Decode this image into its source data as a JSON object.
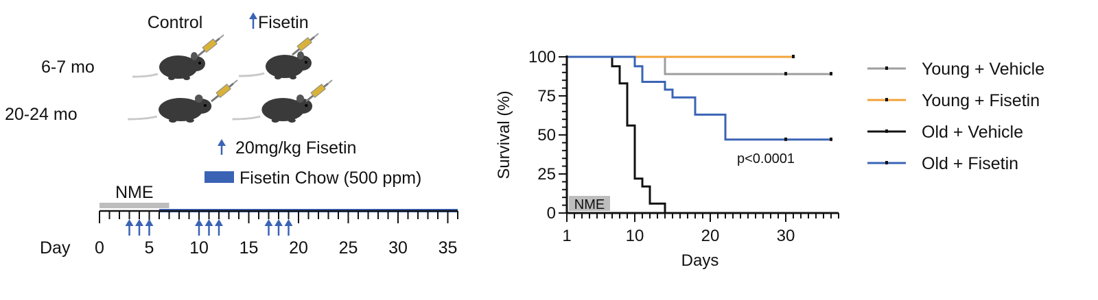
{
  "schematic": {
    "col_control": "Control",
    "col_fisetin": "Fisetin",
    "row_young": "6-7 mo",
    "row_old": "20-24 mo",
    "legend_injection": "20mg/kg Fisetin",
    "legend_chow": "Fisetin Chow (500 ppm)",
    "timeline_label": "Day",
    "nme_label": "NME",
    "timeline_ticks": [
      "0",
      "5",
      "10",
      "15",
      "20",
      "25",
      "30",
      "35"
    ],
    "injection_days": [
      3,
      4,
      5,
      10,
      11,
      12,
      17,
      18,
      19
    ],
    "chow_days": [
      [
        6,
        36
      ]
    ],
    "nme_days": [
      0,
      7
    ],
    "timeline_max": 36,
    "colors": {
      "fisetin": "#3a63b5",
      "nme": "#bdbdbd",
      "syringe": "#d9b23a"
    },
    "icons": [
      "mouse-icon",
      "syringe-icon",
      "arrow-up-icon"
    ]
  },
  "chart_data": {
    "type": "line",
    "title": "",
    "xlabel": "Days",
    "ylabel": "Survival (%)",
    "xlim": [
      1,
      37
    ],
    "ylim": [
      0,
      100
    ],
    "x_ticks": [
      "1",
      "10",
      "20",
      "30"
    ],
    "y_ticks": [
      "0",
      "25",
      "50",
      "75",
      "100"
    ],
    "annotation": "p<0.0001",
    "nme_label": "NME",
    "nme_range": [
      1,
      7
    ],
    "legend_position": "right",
    "series": [
      {
        "name": "Young + Vehicle",
        "color": "#9e9e9e",
        "steps": [
          [
            1,
            100
          ],
          [
            14,
            100
          ],
          [
            14,
            89
          ],
          [
            36,
            89
          ]
        ],
        "censored": [
          [
            30,
            89
          ],
          [
            36,
            89
          ]
        ]
      },
      {
        "name": "Young + Fisetin",
        "color": "#f2a33a",
        "steps": [
          [
            1,
            100
          ],
          [
            31,
            100
          ]
        ],
        "censored": [
          [
            31,
            100
          ]
        ]
      },
      {
        "name": "Old + Vehicle",
        "color": "#111111",
        "steps": [
          [
            1,
            100
          ],
          [
            7,
            100
          ],
          [
            7,
            94
          ],
          [
            8,
            94
          ],
          [
            8,
            83
          ],
          [
            9,
            83
          ],
          [
            9,
            56
          ],
          [
            10,
            56
          ],
          [
            10,
            22
          ],
          [
            11,
            22
          ],
          [
            11,
            17
          ],
          [
            12,
            17
          ],
          [
            12,
            6
          ],
          [
            14,
            6
          ],
          [
            14,
            0
          ]
        ],
        "censored": []
      },
      {
        "name": "Old + Fisetin",
        "color": "#3a63b5",
        "steps": [
          [
            1,
            100
          ],
          [
            10,
            100
          ],
          [
            10,
            94
          ],
          [
            11,
            94
          ],
          [
            11,
            84
          ],
          [
            14,
            84
          ],
          [
            14,
            79
          ],
          [
            15,
            79
          ],
          [
            15,
            74
          ],
          [
            18,
            74
          ],
          [
            18,
            63
          ],
          [
            22,
            63
          ],
          [
            22,
            47
          ],
          [
            36,
            47
          ]
        ],
        "censored": [
          [
            30,
            47
          ],
          [
            36,
            47
          ]
        ]
      }
    ]
  }
}
